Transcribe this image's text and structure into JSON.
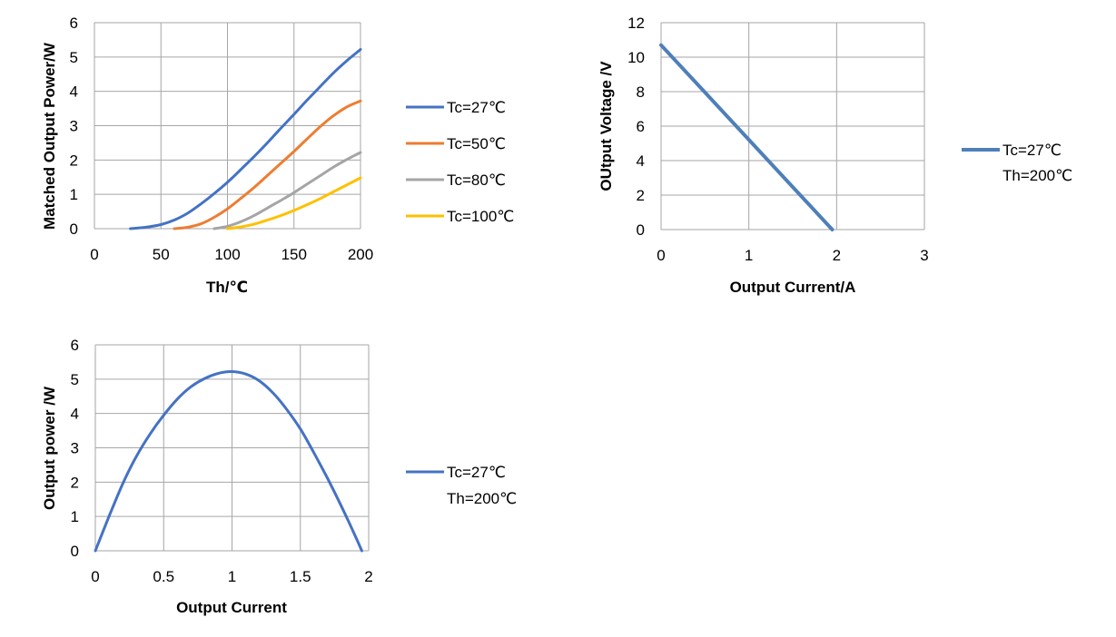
{
  "chart_data": [
    {
      "id": "c1",
      "type": "line",
      "title": "",
      "xlabel": "Th/℃",
      "ylabel": "Matched Output Power/W",
      "xlim": [
        0,
        200
      ],
      "ylim": [
        0,
        6
      ],
      "xticks": [
        0,
        50,
        100,
        150,
        200
      ],
      "yticks": [
        0,
        1,
        2,
        3,
        4,
        5,
        6
      ],
      "grid": true,
      "legend_position": "right",
      "series": [
        {
          "name": "Tc=27℃",
          "color": "#4472c4",
          "x": [
            27,
            40,
            50,
            60,
            70,
            80,
            90,
            100,
            110,
            120,
            130,
            140,
            150,
            160,
            170,
            180,
            190,
            200
          ],
          "y": [
            0.0,
            0.05,
            0.12,
            0.25,
            0.45,
            0.72,
            1.02,
            1.35,
            1.72,
            2.1,
            2.5,
            2.92,
            3.33,
            3.75,
            4.15,
            4.55,
            4.9,
            5.22
          ]
        },
        {
          "name": "Tc=50℃",
          "color": "#ed7d31",
          "x": [
            60,
            70,
            80,
            90,
            100,
            110,
            120,
            130,
            140,
            150,
            160,
            170,
            180,
            190,
            200
          ],
          "y": [
            0.0,
            0.04,
            0.14,
            0.33,
            0.58,
            0.88,
            1.2,
            1.55,
            1.9,
            2.25,
            2.62,
            2.98,
            3.3,
            3.55,
            3.72
          ]
        },
        {
          "name": "Tc=80℃",
          "color": "#a5a5a5",
          "x": [
            90,
            100,
            110,
            120,
            130,
            140,
            150,
            160,
            170,
            180,
            190,
            200
          ],
          "y": [
            0.0,
            0.07,
            0.2,
            0.38,
            0.6,
            0.82,
            1.05,
            1.3,
            1.55,
            1.8,
            2.02,
            2.22
          ]
        },
        {
          "name": "Tc=100℃",
          "color": "#ffc000",
          "x": [
            100,
            110,
            120,
            130,
            140,
            150,
            160,
            170,
            180,
            190,
            200
          ],
          "y": [
            0.0,
            0.05,
            0.13,
            0.25,
            0.38,
            0.53,
            0.7,
            0.88,
            1.08,
            1.28,
            1.48
          ]
        }
      ]
    },
    {
      "id": "c2",
      "type": "line",
      "title": "",
      "xlabel": "Output Current/A",
      "ylabel": "OUtput Voltage /V",
      "xlim": [
        0,
        3
      ],
      "ylim": [
        0,
        12
      ],
      "xticks": [
        0,
        1,
        2,
        3
      ],
      "yticks": [
        0,
        2,
        4,
        6,
        8,
        10,
        12
      ],
      "grid": true,
      "legend_position": "right",
      "series": [
        {
          "name": "Tc=27℃",
          "name2": "Th=200℃",
          "color": "#4e7fb9",
          "x": [
            0,
            1.95
          ],
          "y": [
            10.7,
            0
          ]
        }
      ]
    },
    {
      "id": "c3",
      "type": "line",
      "title": "",
      "xlabel": "Output Current",
      "ylabel": "Output power /W",
      "xlim": [
        0,
        2
      ],
      "ylim": [
        0,
        6
      ],
      "xticks": [
        0,
        0.5,
        1,
        1.5,
        2
      ],
      "yticks": [
        0,
        1,
        2,
        3,
        4,
        5,
        6
      ],
      "grid": true,
      "legend_position": "right",
      "series": [
        {
          "name": "Tc=27℃",
          "name2": "Th=200℃",
          "color": "#4472c4",
          "x": [
            0,
            0.1,
            0.2,
            0.3,
            0.4,
            0.5,
            0.6,
            0.7,
            0.8,
            0.9,
            1.0,
            1.1,
            1.2,
            1.3,
            1.4,
            1.5,
            1.6,
            1.7,
            1.8,
            1.9,
            1.95
          ],
          "y": [
            0,
            1.0,
            1.95,
            2.75,
            3.4,
            3.95,
            4.42,
            4.78,
            5.02,
            5.17,
            5.22,
            5.15,
            4.95,
            4.6,
            4.12,
            3.55,
            2.85,
            2.1,
            1.3,
            0.45,
            0
          ]
        }
      ]
    }
  ]
}
